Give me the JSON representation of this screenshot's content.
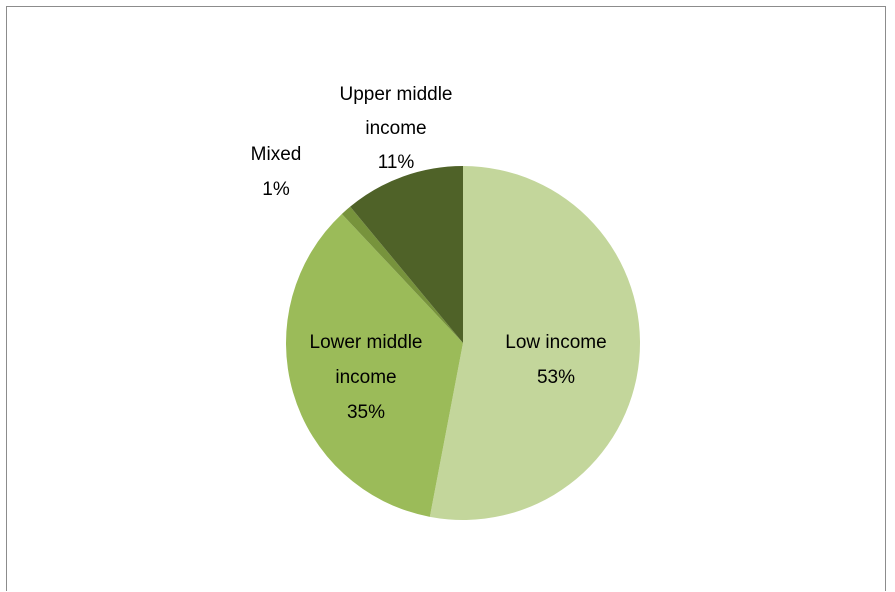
{
  "chart_data": {
    "type": "pie",
    "title": "",
    "slices": [
      {
        "label": "Low income",
        "line1": "Low income",
        "line2": "",
        "percent_text": "53%",
        "value": 53,
        "color": "#c3d69b"
      },
      {
        "label": "Lower middle income",
        "line1": "Lower middle",
        "line2": "income",
        "percent_text": "35%",
        "value": 35,
        "color": "#9bbb59"
      },
      {
        "label": "Mixed",
        "line1": "Mixed",
        "line2": "",
        "percent_text": "1%",
        "value": 1,
        "color": "#77933c"
      },
      {
        "label": "Upper middle income",
        "line1": "Upper middle",
        "line2": "income",
        "percent_text": "11%",
        "value": 11,
        "color": "#4f6228"
      }
    ],
    "start_angle": "12 o'clock",
    "direction": "clockwise",
    "legend": "none"
  }
}
